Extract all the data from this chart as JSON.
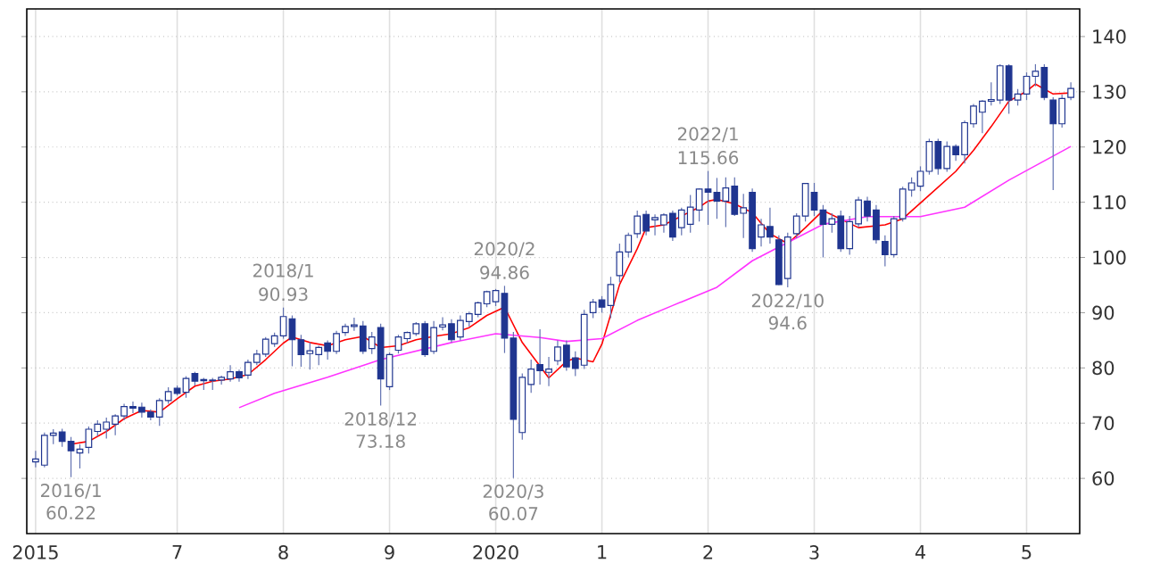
{
  "chart_data": {
    "type": "candlestick",
    "color": "#1f3590",
    "grid": true,
    "xlim": [
      "2015-08",
      "2025-07"
    ],
    "ylim": [
      50,
      145
    ],
    "xticks": [
      {
        "value": "2015-09",
        "label": "2015"
      },
      {
        "value": "2017-01",
        "label": "7"
      },
      {
        "value": "2018-01",
        "label": "8"
      },
      {
        "value": "2019-01",
        "label": "9"
      },
      {
        "value": "2020-01",
        "label": "2020"
      },
      {
        "value": "2021-01",
        "label": "1"
      },
      {
        "value": "2022-01",
        "label": "2"
      },
      {
        "value": "2023-01",
        "label": "3"
      },
      {
        "value": "2024-01",
        "label": "4"
      },
      {
        "value": "2025-01",
        "label": "5"
      }
    ],
    "yticks": [
      60,
      70,
      80,
      90,
      100,
      110,
      120,
      130,
      140
    ],
    "x": [
      "2015-09",
      "2015-10",
      "2015-11",
      "2015-12",
      "2016-01",
      "2016-02",
      "2016-03",
      "2016-04",
      "2016-05",
      "2016-06",
      "2016-07",
      "2016-08",
      "2016-09",
      "2016-10",
      "2016-11",
      "2016-12",
      "2017-01",
      "2017-02",
      "2017-03",
      "2017-04",
      "2017-05",
      "2017-06",
      "2017-07",
      "2017-08",
      "2017-09",
      "2017-10",
      "2017-11",
      "2017-12",
      "2018-01",
      "2018-02",
      "2018-03",
      "2018-04",
      "2018-05",
      "2018-06",
      "2018-07",
      "2018-08",
      "2018-09",
      "2018-10",
      "2018-11",
      "2018-12",
      "2019-01",
      "2019-02",
      "2019-03",
      "2019-04",
      "2019-05",
      "2019-06",
      "2019-07",
      "2019-08",
      "2019-09",
      "2019-10",
      "2019-11",
      "2019-12",
      "2020-01",
      "2020-02",
      "2020-03",
      "2020-04",
      "2020-05",
      "2020-06",
      "2020-07",
      "2020-08",
      "2020-09",
      "2020-10",
      "2020-11",
      "2020-12",
      "2021-01",
      "2021-02",
      "2021-03",
      "2021-04",
      "2021-05",
      "2021-06",
      "2021-07",
      "2021-08",
      "2021-09",
      "2021-10",
      "2021-11",
      "2021-12",
      "2022-01",
      "2022-02",
      "2022-03",
      "2022-04",
      "2022-05",
      "2022-06",
      "2022-07",
      "2022-08",
      "2022-09",
      "2022-10",
      "2022-11",
      "2022-12",
      "2023-01",
      "2023-02",
      "2023-03",
      "2023-04",
      "2023-05",
      "2023-06",
      "2023-07",
      "2023-08",
      "2023-09",
      "2023-10",
      "2023-11",
      "2023-12",
      "2024-01",
      "2024-02",
      "2024-03",
      "2024-04",
      "2024-05",
      "2024-06",
      "2024-07",
      "2024-08",
      "2024-09",
      "2024-10",
      "2024-11",
      "2024-12",
      "2025-01",
      "2025-02",
      "2025-03",
      "2025-04",
      "2025-05",
      "2025-06"
    ],
    "ohlc": [
      [
        63,
        65,
        62,
        63.5
      ],
      [
        62.4,
        68.3,
        62,
        67.8
      ],
      [
        67.8,
        68.9,
        66.2,
        68.2
      ],
      [
        68.4,
        69,
        65.7,
        66.7
      ],
      [
        66.7,
        67.5,
        60.22,
        65
      ],
      [
        64.6,
        66.2,
        61.8,
        65.3
      ],
      [
        65.6,
        69.4,
        64.5,
        68.9
      ],
      [
        68.5,
        70.5,
        67.6,
        69.8
      ],
      [
        68.9,
        71,
        67.2,
        70.2
      ],
      [
        69.8,
        71.6,
        67.8,
        71.3
      ],
      [
        71.3,
        73.5,
        70.5,
        73
      ],
      [
        73,
        73.9,
        71.8,
        72.7
      ],
      [
        72.9,
        73.7,
        71,
        72
      ],
      [
        72,
        72.5,
        70.5,
        71.1
      ],
      [
        71.1,
        74.5,
        69.5,
        74.1
      ],
      [
        74.1,
        76.5,
        73.5,
        75.7
      ],
      [
        76.3,
        76.8,
        75,
        75.4
      ],
      [
        75.6,
        78.5,
        74.6,
        78.1
      ],
      [
        79,
        79.3,
        76.8,
        77.6
      ],
      [
        77.7,
        78.2,
        76,
        77.9
      ],
      [
        77.8,
        78.2,
        76,
        77.7
      ],
      [
        77.8,
        78.6,
        77,
        78.3
      ],
      [
        78,
        80.5,
        77.5,
        79.3
      ],
      [
        79.3,
        79.7,
        77.5,
        78.2
      ],
      [
        78.7,
        81.5,
        78,
        81
      ],
      [
        81,
        83.3,
        80.5,
        82.5
      ],
      [
        82.5,
        85.6,
        82,
        85.2
      ],
      [
        84.4,
        86.4,
        83.8,
        85.8
      ],
      [
        85.8,
        90.93,
        85.3,
        89.3
      ],
      [
        88.9,
        89.5,
        80.3,
        85.1
      ],
      [
        85.1,
        86,
        80.2,
        82.4
      ],
      [
        82.6,
        84.6,
        79.7,
        83.1
      ],
      [
        82.4,
        84,
        80.5,
        83.7
      ],
      [
        84.5,
        85,
        81.5,
        83
      ],
      [
        83,
        86.7,
        82.5,
        86.2
      ],
      [
        86.4,
        88,
        85.8,
        87.5
      ],
      [
        87.5,
        89.1,
        86.7,
        87.8
      ],
      [
        87.6,
        88.5,
        82.5,
        83
      ],
      [
        83.5,
        86.5,
        82.5,
        85.6
      ],
      [
        87.3,
        88,
        73.18,
        78
      ],
      [
        76.6,
        82.8,
        76,
        82.4
      ],
      [
        83.2,
        86,
        82.6,
        85.6
      ],
      [
        85.3,
        86.6,
        84.5,
        86.4
      ],
      [
        86.2,
        88.3,
        85.8,
        88
      ],
      [
        88,
        88.5,
        82,
        82.4
      ],
      [
        83,
        88.5,
        82.5,
        87.3
      ],
      [
        87.4,
        89.2,
        86.8,
        87.8
      ],
      [
        88,
        88.8,
        84.6,
        85.1
      ],
      [
        85.6,
        89.5,
        85,
        88.6
      ],
      [
        88.4,
        90.2,
        87.5,
        89.8
      ],
      [
        89.7,
        92,
        89.2,
        91.8
      ],
      [
        91.6,
        94,
        91,
        93.8
      ],
      [
        92,
        94.3,
        91.2,
        94
      ],
      [
        93.5,
        94.86,
        82.7,
        85.4
      ],
      [
        85.4,
        86.5,
        60.07,
        70.7
      ],
      [
        68.3,
        79,
        67,
        78.3
      ],
      [
        77,
        81.5,
        75.5,
        79.8
      ],
      [
        80.6,
        87,
        77,
        79.5
      ],
      [
        79.2,
        82,
        76.7,
        79.8
      ],
      [
        81.3,
        85,
        80.5,
        83.8
      ],
      [
        84.1,
        85,
        79.5,
        80.2
      ],
      [
        81.8,
        83,
        78.5,
        79.9
      ],
      [
        80.5,
        90.5,
        79.8,
        89.7
      ],
      [
        90,
        92.5,
        89,
        91.9
      ],
      [
        92.3,
        93,
        90,
        91
      ],
      [
        91.3,
        96.5,
        89,
        95.1
      ],
      [
        96.7,
        102.5,
        95.5,
        101
      ],
      [
        101,
        104.5,
        100,
        104
      ],
      [
        104.3,
        108.5,
        103.5,
        107.5
      ],
      [
        107.8,
        108.5,
        104,
        104.8
      ],
      [
        106.8,
        107.8,
        104,
        107.2
      ],
      [
        105.9,
        108,
        104.5,
        107.7
      ],
      [
        108,
        108.5,
        103,
        103.7
      ],
      [
        105.4,
        109,
        104,
        108.6
      ],
      [
        106,
        111.3,
        104.5,
        109.1
      ],
      [
        108.6,
        112.5,
        106.5,
        112.4
      ],
      [
        112.4,
        115.66,
        105.9,
        111.8
      ],
      [
        111.8,
        114.4,
        107,
        110.2
      ],
      [
        110.2,
        114.5,
        105.5,
        112.6
      ],
      [
        112.9,
        114.5,
        107.5,
        107.8
      ],
      [
        108,
        111.5,
        103.5,
        109
      ],
      [
        111.8,
        112.5,
        101,
        101.6
      ],
      [
        103.7,
        107,
        102,
        105.9
      ],
      [
        105.6,
        109,
        102.5,
        103.7
      ],
      [
        103.2,
        104,
        95,
        95.1
      ],
      [
        96.2,
        104.5,
        94.6,
        103.7
      ],
      [
        104.3,
        108,
        103.5,
        107.5
      ],
      [
        107.5,
        113.5,
        106.5,
        113.4
      ],
      [
        111.8,
        113.5,
        107.5,
        108.6
      ],
      [
        108.6,
        109.5,
        100,
        106
      ],
      [
        106,
        108,
        104.5,
        107
      ],
      [
        107.5,
        108.5,
        101,
        101.6
      ],
      [
        101.6,
        107.5,
        100.5,
        106.5
      ],
      [
        106.1,
        111,
        105.5,
        110.4
      ],
      [
        110.2,
        111,
        106.5,
        107.5
      ],
      [
        108.6,
        109.5,
        102.5,
        103.2
      ],
      [
        102.9,
        104,
        98.4,
        100.5
      ],
      [
        100.5,
        107.5,
        100,
        107
      ],
      [
        107,
        112.8,
        106.5,
        112.4
      ],
      [
        112.2,
        114.5,
        111,
        113.5
      ],
      [
        112.9,
        116.5,
        112,
        115.6
      ],
      [
        115.6,
        121.5,
        115,
        121
      ],
      [
        121,
        121.5,
        115,
        116.1
      ],
      [
        116.1,
        121,
        115.5,
        120.1
      ],
      [
        120.1,
        120.5,
        117.5,
        118.6
      ],
      [
        118.6,
        124.8,
        117,
        124.4
      ],
      [
        124.2,
        127.8,
        123.5,
        127.4
      ],
      [
        126.3,
        128.5,
        122.5,
        128.3
      ],
      [
        128.3,
        131.7,
        127.5,
        128.6
      ],
      [
        128.5,
        135,
        127.8,
        134.7
      ],
      [
        134.7,
        135,
        126,
        128.5
      ],
      [
        128.5,
        130.5,
        127.5,
        129.6
      ],
      [
        129.6,
        133.5,
        128.5,
        132.8
      ],
      [
        132.8,
        135,
        131,
        133.7
      ],
      [
        134.4,
        135,
        128.5,
        129
      ],
      [
        128.5,
        129,
        112.2,
        124.2
      ],
      [
        124.2,
        129.5,
        123.5,
        128.8
      ],
      [
        129,
        131.7,
        128.5,
        130.6
      ]
    ],
    "series": [
      {
        "type": "line",
        "color": "#ff0000",
        "x": [
          "2016-01",
          "2016-03",
          "2016-05",
          "2016-07",
          "2016-09",
          "2016-11",
          "2017-01",
          "2017-03",
          "2017-05",
          "2017-07",
          "2017-09",
          "2017-11",
          "2018-01",
          "2018-02",
          "2018-04",
          "2018-06",
          "2018-08",
          "2018-10",
          "2018-12",
          "2019-02",
          "2019-04",
          "2019-06",
          "2019-08",
          "2019-10",
          "2019-12",
          "2020-02",
          "2020-04",
          "2020-07",
          "2020-09",
          "2020-10",
          "2020-12",
          "2021-01",
          "2021-03",
          "2021-05",
          "2021-06",
          "2021-08",
          "2021-10",
          "2021-12",
          "2022-01",
          "2022-02",
          "2022-04",
          "2022-06",
          "2022-08",
          "2022-10",
          "2022-12",
          "2023-02",
          "2023-06",
          "2023-09",
          "2023-11",
          "2024-02",
          "2024-05",
          "2024-07",
          "2024-09",
          "2024-11",
          "2025-01",
          "2025-02",
          "2025-04",
          "2025-06"
        ],
        "values": [
          66.2,
          66.7,
          68.5,
          70.8,
          72.3,
          72,
          74.4,
          76.7,
          77.6,
          78,
          78.8,
          81.5,
          84.5,
          85.6,
          84.6,
          84,
          85.1,
          85.7,
          83.7,
          84,
          85.1,
          85.7,
          86.2,
          87.3,
          89.5,
          91,
          84.6,
          78.2,
          81.2,
          81.8,
          81.1,
          84.3,
          95.1,
          101.6,
          105.4,
          105.9,
          107.5,
          109.1,
          110.2,
          110.5,
          109.7,
          108.1,
          104.3,
          102.5,
          105.4,
          108.5,
          105.4,
          105.9,
          107,
          111.3,
          115.6,
          119.4,
          123.7,
          128.3,
          130.1,
          131.4,
          129.6,
          129.8
        ]
      },
      {
        "type": "line",
        "color": "#ff33ff",
        "x": [
          "2017-08",
          "2017-12",
          "2018-06",
          "2018-12",
          "2019-08",
          "2020-01",
          "2020-06",
          "2020-09",
          "2021-01",
          "2021-05",
          "2021-09",
          "2022-02",
          "2022-06",
          "2022-10",
          "2023-02",
          "2023-07",
          "2024-01",
          "2024-06",
          "2024-11",
          "2025-06"
        ],
        "values": [
          72.8,
          75.4,
          78.3,
          81.5,
          84.6,
          86.2,
          85.5,
          84.8,
          85.3,
          88.6,
          91.3,
          94.6,
          99.4,
          102.7,
          106,
          107.4,
          107.4,
          109.1,
          114,
          120.1
        ]
      }
    ],
    "annotations": [
      {
        "text": "2016/1",
        "x": "2016-01",
        "y": 60.22
      },
      {
        "text": "60.22",
        "x": "2016-01",
        "y": 60.22
      },
      {
        "text": "2018/1",
        "x": "2018-01",
        "y": 90.93
      },
      {
        "text": "90.93",
        "x": "2018-01",
        "y": 90.93
      },
      {
        "text": "2018/12",
        "x": "2018-12",
        "y": 73.18
      },
      {
        "text": "73.18",
        "x": "2018-12",
        "y": 73.18
      },
      {
        "text": "2020/2",
        "x": "2020-02",
        "y": 94.86
      },
      {
        "text": "94.86",
        "x": "2020-02",
        "y": 94.86
      },
      {
        "text": "2020/3",
        "x": "2020-03",
        "y": 60.07
      },
      {
        "text": "60.07",
        "x": "2020-03",
        "y": 60.07
      },
      {
        "text": "2022/1",
        "x": "2022-01",
        "y": 115.66
      },
      {
        "text": "115.66",
        "x": "2022-01",
        "y": 115.66
      },
      {
        "text": "2022/10",
        "x": "2022-10",
        "y": 94.6
      },
      {
        "text": "94.6",
        "x": "2022-10",
        "y": 94.6
      }
    ]
  }
}
